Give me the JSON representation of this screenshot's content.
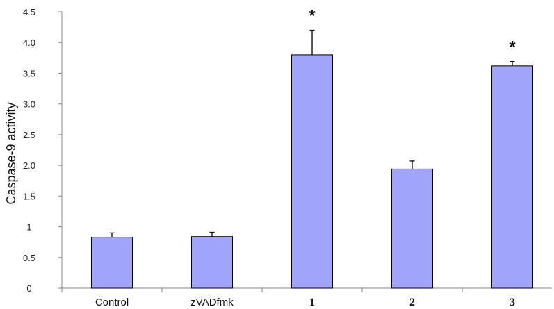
{
  "chart_data": {
    "type": "bar",
    "title": "",
    "xlabel": "",
    "ylabel": "Caspase-9 activity",
    "categories": [
      "Control",
      "zVADfmk",
      "1",
      "2",
      "3"
    ],
    "bold_categories": [
      false,
      false,
      true,
      true,
      true
    ],
    "values": [
      0.83,
      0.84,
      3.8,
      1.94,
      3.62
    ],
    "errors": [
      0.07,
      0.07,
      0.4,
      0.13,
      0.07
    ],
    "significance": [
      "",
      "",
      "*",
      "",
      "*"
    ],
    "ylim": [
      0,
      4.5
    ],
    "yticks": [
      {
        "value": 0,
        "label": "0"
      },
      {
        "value": 0.5,
        "label": "0.5"
      },
      {
        "value": 1,
        "label": "1"
      },
      {
        "value": 1.5,
        "label": "1.5"
      },
      {
        "value": 2,
        "label": "2.0"
      },
      {
        "value": 2.5,
        "label": "2.5"
      },
      {
        "value": 3,
        "label": "3.0"
      },
      {
        "value": 3.5,
        "label": "3.5"
      },
      {
        "value": 4,
        "label": "4.0"
      },
      {
        "value": 4.5,
        "label": "4.5"
      }
    ],
    "grid": false,
    "legend": "none",
    "colors": {
      "bar_fill": "#a0a4fa",
      "bar_stroke": "#000000",
      "axis": "#888888"
    }
  }
}
